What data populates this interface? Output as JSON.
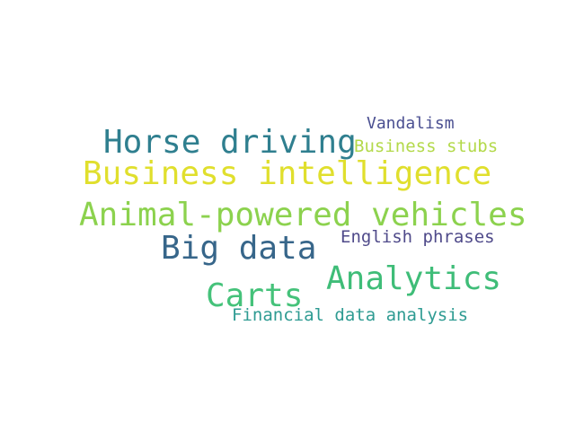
{
  "word_cloud": {
    "words": [
      {
        "text": "Vandalism",
        "color": "#4a4f91"
      },
      {
        "text": "Horse driving",
        "color": "#2f7f8f"
      },
      {
        "text": "Business stubs",
        "color": "#b3d94a"
      },
      {
        "text": "Business intelligence",
        "color": "#e0df2d"
      },
      {
        "text": "Animal-powered vehicles",
        "color": "#8cd24e"
      },
      {
        "text": "Big data",
        "color": "#37668a"
      },
      {
        "text": "English phrases",
        "color": "#4f4a8a"
      },
      {
        "text": "Analytics",
        "color": "#3fbd78"
      },
      {
        "text": "Carts",
        "color": "#45c27a"
      },
      {
        "text": "Financial data analysis",
        "color": "#2e9b92"
      }
    ]
  }
}
